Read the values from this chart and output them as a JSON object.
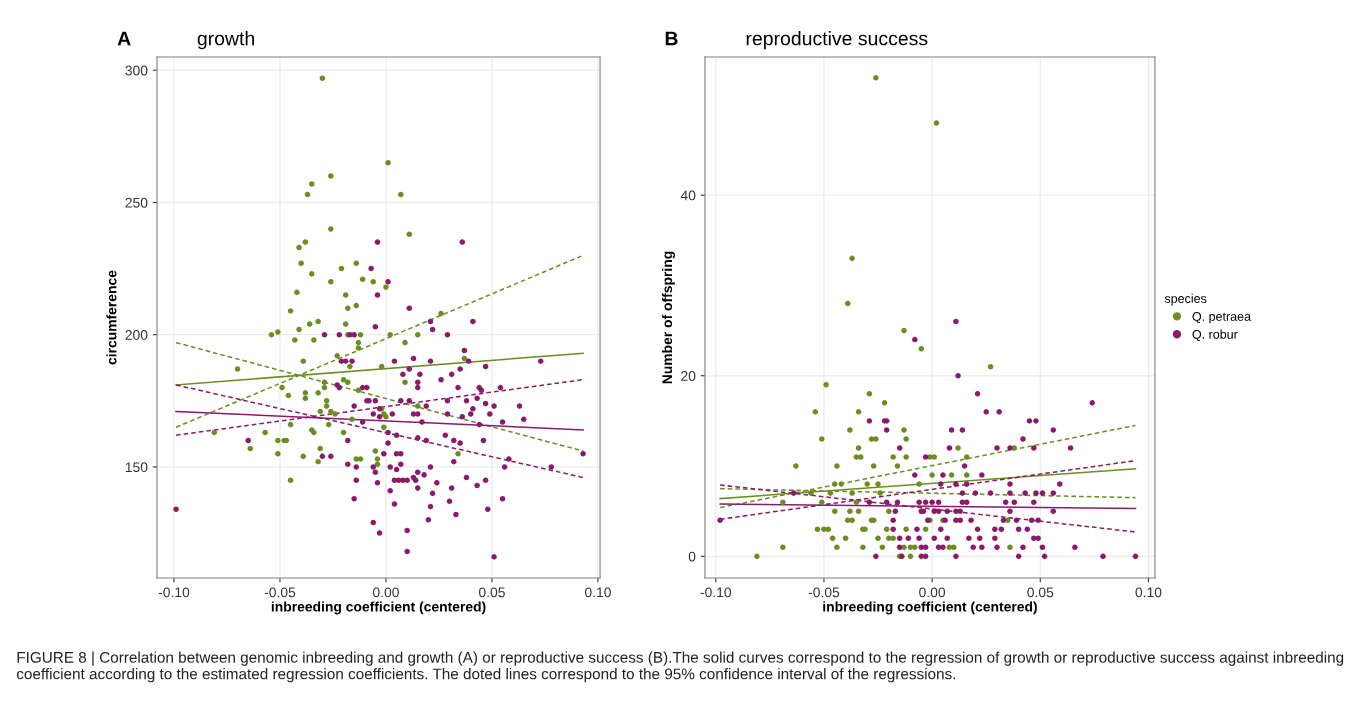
{
  "chart_data": [
    {
      "type": "scatter",
      "title": "growth",
      "xlabel": "inbreeding coefficient (centered)",
      "ylabel": "circumference",
      "annotations": [
        "A",
        "FIGURE 8 | Correlation between genomic inbreeding and growth (A) or reproductive success (B).The solid curves correspond to the regression of growth or reproductive success against inbreeding coefficient according to the estimated regression coefficients. The doted lines correspond to the 95% confidence interval of the regressions."
      ],
      "grid": true,
      "xlim": [
        -0.108,
        0.101
      ],
      "ylim": [
        108,
        305
      ],
      "xticks": [
        {
          "value": -0.1,
          "label": "-0.10"
        },
        {
          "value": -0.05,
          "label": "-0.05"
        },
        {
          "value": 0,
          "label": "0.00"
        },
        {
          "value": 0.05,
          "label": "0.05"
        },
        {
          "value": 0.1,
          "label": "0.10"
        }
      ],
      "yticks": [
        150,
        200,
        250,
        300
      ],
      "series": [
        {
          "marker": "circle",
          "color": "#6b8e23",
          "x": [
            -0.03,
            0.001,
            -0.026,
            -0.035,
            -0.037,
            0.007,
            -0.026,
            0.011,
            -0.038,
            -0.041,
            -0.04,
            -0.021,
            -0.014,
            -0.035,
            -0.011,
            -0.026,
            -0.006,
            0.0,
            -0.042,
            -0.019,
            -0.045,
            -0.018,
            -0.014,
            0.026,
            -0.054,
            -0.051,
            -0.041,
            -0.036,
            -0.032,
            -0.043,
            -0.034,
            -0.019,
            -0.018,
            -0.012,
            0.002,
            0.015,
            -0.013,
            -0.013,
            0.009,
            -0.039,
            -0.07,
            -0.017,
            -0.023,
            -0.002,
            0.037,
            -0.02,
            -0.049,
            -0.046,
            -0.038,
            -0.038,
            -0.032,
            -0.029,
            -0.029,
            -0.018,
            -0.013,
            0.009,
            -0.028,
            -0.028,
            0.015,
            -0.031,
            -0.026,
            -0.024,
            -0.027,
            -0.016,
            -0.002,
            -0.001,
            0.0,
            -0.045,
            -0.081,
            -0.057,
            -0.035,
            -0.034,
            -0.051,
            -0.048,
            -0.047,
            -0.02,
            -0.001,
            -0.064,
            -0.051,
            -0.039,
            -0.031,
            -0.032,
            -0.014,
            -0.012,
            -0.005,
            -0.004,
            -0.004,
            0.034,
            -0.045
          ],
          "values": [
            297,
            265,
            260,
            257,
            253,
            253,
            240,
            238,
            235,
            233,
            227,
            225,
            227,
            223,
            221,
            220,
            220,
            218,
            216,
            215,
            209,
            210,
            211,
            208,
            200,
            201,
            202,
            204,
            205,
            198,
            198,
            204,
            200,
            200,
            200,
            200,
            197,
            195,
            197,
            190,
            187,
            188,
            192,
            188,
            191,
            183,
            180,
            177,
            176,
            178,
            178,
            182,
            180,
            182,
            179,
            182,
            175,
            173,
            173,
            171,
            171,
            170,
            166,
            168,
            172,
            170,
            169,
            166,
            163,
            163,
            164,
            163,
            160,
            160,
            160,
            163,
            165,
            157,
            155,
            154,
            157,
            152,
            153,
            153,
            156,
            153,
            151,
            155,
            145
          ]
        },
        {
          "marker": "circle",
          "color": "#8b1a6b",
          "x": [
            -0.004,
            0.036,
            -0.007,
            0.001,
            -0.004,
            0.011,
            -0.005,
            0.021,
            0.041,
            0.022,
            -0.029,
            -0.022,
            -0.017,
            -0.015,
            0.029,
            -0.021,
            -0.019,
            -0.016,
            0.004,
            0.013,
            0.021,
            0.037,
            0.035,
            0.039,
            0.047,
            0.073,
            0.008,
            0.011,
            0.016,
            0.026,
            0.031,
            -0.023,
            -0.022,
            -0.011,
            -0.009,
            0.015,
            0.015,
            0.034,
            0.044,
            0.045,
            0.054,
            -0.015,
            -0.009,
            -0.008,
            -0.005,
            -0.003,
            0.007,
            0.011,
            0.019,
            0.029,
            0.038,
            0.041,
            0.043,
            0.047,
            0.051,
            0.063,
            0.065,
            -0.006,
            -0.003,
            0.003,
            0.013,
            0.015,
            0.029,
            0.036,
            0.04,
            0.049,
            0.055,
            -0.011,
            0.017,
            0.044,
            -0.099,
            -0.065,
            -0.03,
            -0.026,
            -0.018,
            0.001,
            0.001,
            0.005,
            0.015,
            0.019,
            0.028,
            0.032,
            0.035,
            0.046,
            0.093,
            0.058,
            0.078,
            -0.001,
            0.005,
            0.007,
            -0.018,
            -0.014,
            -0.006,
            0.002,
            0.007,
            0.021,
            0.032,
            0.056,
            0.005,
            -0.014,
            -0.005,
            0.004,
            0.006,
            0.008,
            0.01,
            0.013,
            0.014,
            0.018,
            0.024,
            0.038,
            0.043,
            0.047,
            -0.004,
            0.015,
            -0.015,
            0.002,
            0.022,
            0.015,
            0.031,
            0.055,
            0.004,
            0.021,
            0.03,
            0.048,
            0.033,
            0.02,
            -0.006,
            -0.003,
            0.01,
            0.01,
            0.051
          ],
          "values": [
            235,
            235,
            225,
            220,
            215,
            210,
            203,
            205,
            205,
            202,
            200,
            200,
            200,
            200,
            200,
            190,
            190,
            190,
            190,
            191,
            190,
            194,
            187,
            190,
            188,
            190,
            185,
            187,
            185,
            183,
            185,
            181,
            180,
            180,
            180,
            182,
            180,
            180,
            180,
            179,
            180,
            173,
            175,
            175,
            175,
            172,
            175,
            175,
            173,
            175,
            175,
            172,
            176,
            174,
            173,
            173,
            168,
            170,
            169,
            170,
            170,
            170,
            170,
            169,
            170,
            170,
            167,
            167,
            167,
            166,
            134,
            160,
            154,
            154,
            160,
            163,
            159,
            162,
            161,
            160,
            162,
            160,
            159,
            160,
            155,
            153,
            150,
            155,
            155,
            155,
            151,
            150,
            150,
            150,
            151,
            150,
            152,
            150,
            149,
            145,
            148,
            145,
            145,
            145,
            145,
            146,
            145,
            147,
            144,
            146,
            143,
            145,
            144,
            148,
            138,
            141,
            140,
            142,
            142,
            138,
            136,
            135,
            137,
            134,
            132,
            130,
            129,
            125,
            126,
            118,
            116
          ]
        },
        {
          "type": "line",
          "color": "#6b8e23",
          "line_style": "solid",
          "x": [
            -0.099,
            0.093
          ],
          "values": [
            181,
            193
          ]
        },
        {
          "type": "line",
          "color": "#6b8e23",
          "line_style": "dashed",
          "x": [
            -0.099,
            0.093
          ],
          "values": [
            165,
            230
          ]
        },
        {
          "type": "line",
          "color": "#6b8e23",
          "line_style": "dashed",
          "x": [
            -0.099,
            0.093
          ],
          "values": [
            197,
            156
          ]
        },
        {
          "type": "line",
          "color": "#8b1a6b",
          "line_style": "solid",
          "x": [
            -0.099,
            0.093
          ],
          "values": [
            171,
            164
          ]
        },
        {
          "type": "line",
          "color": "#8b1a6b",
          "line_style": "dashed",
          "x": [
            -0.099,
            0.093
          ],
          "values": [
            181,
            146
          ]
        },
        {
          "type": "line",
          "color": "#8b1a6b",
          "line_style": "dashed",
          "x": [
            -0.099,
            0.093
          ],
          "values": [
            162,
            183
          ]
        }
      ]
    },
    {
      "type": "scatter",
      "title": "reproductive success",
      "xlabel": "inbreeding coefficient (centered)",
      "ylabel": "Number of offspring",
      "annotations": [
        "B"
      ],
      "legend_title": "species",
      "legend": "right",
      "grid": true,
      "xlim": [
        -0.105,
        0.103
      ],
      "ylim": [
        -2.4,
        55.3
      ],
      "xticks": [
        {
          "value": -0.1,
          "label": "-0.10"
        },
        {
          "value": -0.05,
          "label": "-0.05"
        },
        {
          "value": 0,
          "label": "0.00"
        },
        {
          "value": 0.05,
          "label": "0.05"
        },
        {
          "value": 0.1,
          "label": "0.10"
        }
      ],
      "yticks": [
        0,
        20,
        40
      ],
      "series": [
        {
          "marker": "circle",
          "name": "Q. petraea",
          "color": "#6b8e23",
          "x": [
            -0.026,
            0.002,
            -0.037,
            -0.039,
            -0.013,
            -0.005,
            0.027,
            -0.049,
            -0.029,
            -0.022,
            -0.054,
            -0.034,
            -0.038,
            -0.013,
            -0.051,
            -0.028,
            -0.026,
            -0.012,
            -0.034,
            0.012,
            0.038,
            -0.035,
            -0.033,
            -0.018,
            -0.012,
            -0.001,
            0.001,
            0.016,
            -0.063,
            -0.044,
            -0.027,
            -0.016,
            0.0,
            0.009,
            0.016,
            -0.045,
            -0.042,
            -0.03,
            -0.025,
            -0.006,
            -0.056,
            -0.047,
            -0.037,
            -0.024,
            -0.069,
            -0.051,
            -0.035,
            -0.045,
            -0.038,
            -0.034,
            -0.02,
            -0.039,
            -0.037,
            -0.028,
            -0.027,
            -0.001,
            0.005,
            0.035,
            -0.053,
            -0.05,
            -0.048,
            -0.032,
            -0.031,
            -0.021,
            -0.012,
            -0.003,
            -0.046,
            -0.04,
            -0.025,
            -0.02,
            -0.018,
            -0.069,
            -0.044,
            -0.032,
            -0.023,
            -0.013,
            -0.01,
            -0.008,
            0.008,
            0.01,
            0.036,
            -0.081,
            -0.015,
            -0.01
          ],
          "values": [
            53,
            48,
            33,
            28,
            25,
            23,
            21,
            19,
            18,
            17,
            16,
            16,
            14,
            14,
            13,
            13,
            13,
            13,
            12,
            12,
            12,
            11,
            11,
            11,
            11,
            11,
            11,
            11,
            10,
            10,
            10,
            10,
            9,
            9,
            9,
            8,
            8,
            8,
            8,
            8,
            7,
            7,
            7,
            7,
            6,
            6,
            6,
            5,
            5,
            5,
            5,
            4,
            4,
            4,
            4,
            4,
            4,
            4,
            3,
            3,
            3,
            3,
            3,
            3,
            3,
            3,
            2,
            2,
            2,
            2,
            2,
            1,
            1,
            1,
            1,
            1,
            1,
            1,
            1,
            1,
            1,
            0,
            0,
            0
          ]
        },
        {
          "marker": "circle",
          "name": "Q. robur",
          "color": "#8b1a6b",
          "x": [
            0.011,
            -0.008,
            0.012,
            0.021,
            0.025,
            0.031,
            0.074,
            -0.029,
            -0.022,
            -0.021,
            0.045,
            0.048,
            -0.021,
            0.009,
            0.014,
            0.056,
            0.042,
            -0.015,
            0.008,
            0.03,
            0.036,
            0.047,
            0.064,
            -0.003,
            0.015,
            -0.008,
            0.005,
            0.023,
            0.004,
            0.011,
            0.016,
            0.036,
            0.059,
            -0.064,
            0.014,
            0.02,
            0.027,
            0.036,
            0.043,
            0.048,
            0.051,
            0.056,
            -0.029,
            -0.021,
            -0.016,
            -0.006,
            -0.003,
            0.0,
            0.003,
            0.014,
            0.016,
            0.034,
            0.038,
            0.047,
            -0.017,
            -0.005,
            -0.004,
            0.001,
            0.003,
            0.007,
            0.011,
            0.013,
            0.036,
            0.056,
            -0.098,
            -0.018,
            -0.002,
            0.006,
            0.011,
            0.013,
            0.018,
            0.033,
            0.039,
            0.046,
            0.049,
            -0.018,
            -0.007,
            0.004,
            0.021,
            0.029,
            0.032,
            0.04,
            0.044,
            -0.015,
            -0.011,
            -0.006,
            0.001,
            0.007,
            0.017,
            0.022,
            0.029,
            0.047,
            0.049,
            -0.015,
            -0.005,
            -0.003,
            0.003,
            0.005,
            0.019,
            0.023,
            0.03,
            0.042,
            0.051,
            0.066,
            -0.026,
            -0.014,
            -0.005,
            -0.003,
            0.011,
            0.04,
            0.052,
            0.079,
            0.094
          ],
          "values": [
            26,
            24,
            20,
            18,
            16,
            16,
            17,
            15,
            15,
            15,
            15,
            15,
            14,
            14,
            14,
            14,
            13,
            12,
            12,
            12,
            12,
            12,
            12,
            11,
            10,
            9,
            9,
            9,
            8,
            8,
            8,
            8,
            8,
            7,
            7,
            7,
            7,
            7,
            7,
            7,
            7,
            7,
            6,
            6,
            6,
            6,
            6,
            6,
            6,
            6,
            6,
            6,
            6,
            6,
            5,
            5,
            5,
            5,
            5,
            5,
            5,
            5,
            5,
            5,
            4,
            4,
            4,
            4,
            4,
            4,
            4,
            4,
            4,
            4,
            4,
            3,
            3,
            3,
            3,
            3,
            3,
            3,
            3,
            2,
            2,
            2,
            2,
            2,
            2,
            2,
            2,
            2,
            2,
            1,
            1,
            1,
            1,
            1,
            1,
            1,
            1,
            1,
            1,
            1,
            0,
            0,
            0,
            0,
            0,
            0,
            0,
            0,
            0
          ]
        },
        {
          "type": "line",
          "color": "#6b8e23",
          "line_style": "solid",
          "x": [
            -0.098,
            0.094
          ],
          "values": [
            6.4,
            9.7
          ]
        },
        {
          "type": "line",
          "color": "#6b8e23",
          "line_style": "dashed",
          "x": [
            -0.098,
            0.094
          ],
          "values": [
            5.4,
            14.5
          ]
        },
        {
          "type": "line",
          "color": "#6b8e23",
          "line_style": "dashed",
          "x": [
            -0.098,
            0.094
          ],
          "values": [
            7.5,
            6.5
          ]
        },
        {
          "type": "line",
          "color": "#8b1a6b",
          "line_style": "solid",
          "x": [
            -0.098,
            0.094
          ],
          "values": [
            5.8,
            5.3
          ]
        },
        {
          "type": "line",
          "color": "#8b1a6b",
          "line_style": "dashed",
          "x": [
            -0.098,
            0.094
          ],
          "values": [
            7.9,
            2.7
          ]
        },
        {
          "type": "line",
          "color": "#8b1a6b",
          "line_style": "dashed",
          "x": [
            -0.098,
            0.094
          ],
          "values": [
            4.1,
            10.6
          ]
        }
      ]
    }
  ]
}
